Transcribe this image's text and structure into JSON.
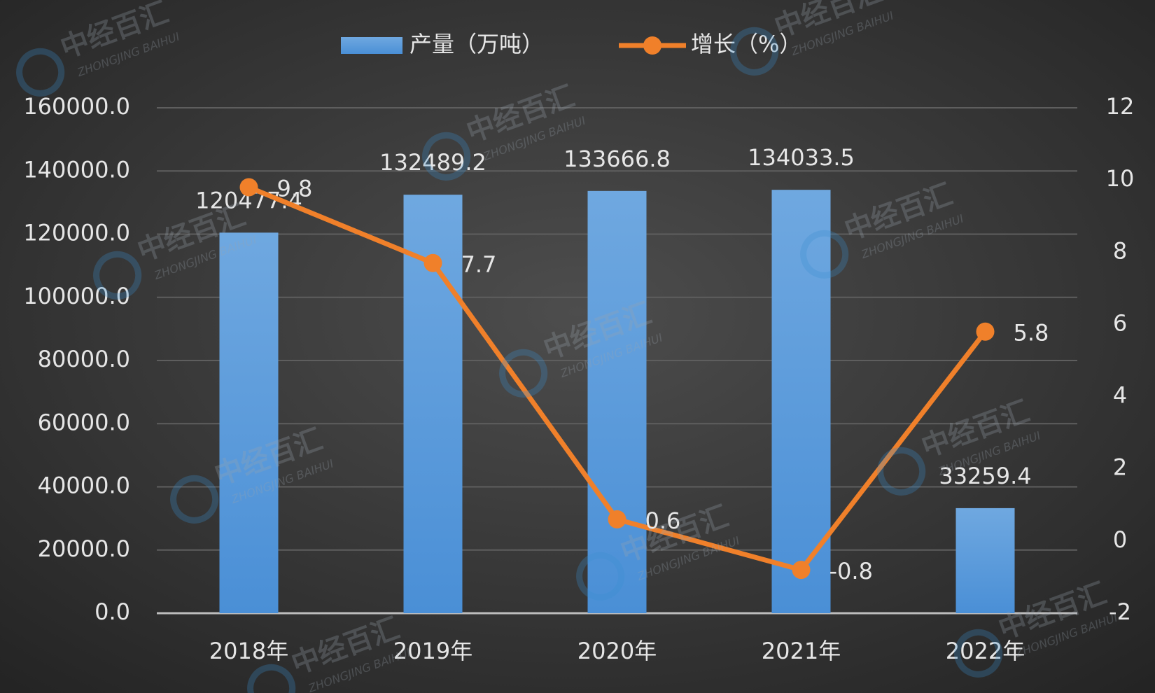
{
  "chart_data": {
    "type": "bar_line",
    "categories": [
      "2018年",
      "2019年",
      "2020年",
      "2021年",
      "2022年"
    ],
    "series": [
      {
        "name": "产量（万吨）",
        "type": "bar",
        "color": "#5b9bd5",
        "values": [
          120477.4,
          132489.2,
          133666.8,
          134033.5,
          33259.4
        ]
      },
      {
        "name": "增长（%）",
        "type": "line",
        "axis": "y2",
        "color": "#f0802a",
        "values": [
          9.8,
          7.7,
          0.6,
          -0.8,
          5.8
        ]
      }
    ],
    "ylim": [
      0,
      160000
    ],
    "yticks": [
      {
        "value": 0,
        "label": "0.0"
      },
      {
        "value": 20000,
        "label": "20000.0"
      },
      {
        "value": 40000,
        "label": "40000.0"
      },
      {
        "value": 60000,
        "label": "60000.0"
      },
      {
        "value": 80000,
        "label": "80000.0"
      },
      {
        "value": 100000,
        "label": "100000.0"
      },
      {
        "value": 120000,
        "label": "120000.0"
      },
      {
        "value": 140000,
        "label": "140000.0"
      },
      {
        "value": 160000,
        "label": "160000.0"
      }
    ],
    "y2lim": [
      -2,
      12
    ],
    "y2ticks": [
      -2,
      0,
      2,
      4,
      6,
      8,
      10,
      12
    ],
    "grid": true,
    "legend": "top",
    "watermark": {
      "text": "中经百汇",
      "subtext": "ZHONGJING BAIHUI"
    }
  }
}
